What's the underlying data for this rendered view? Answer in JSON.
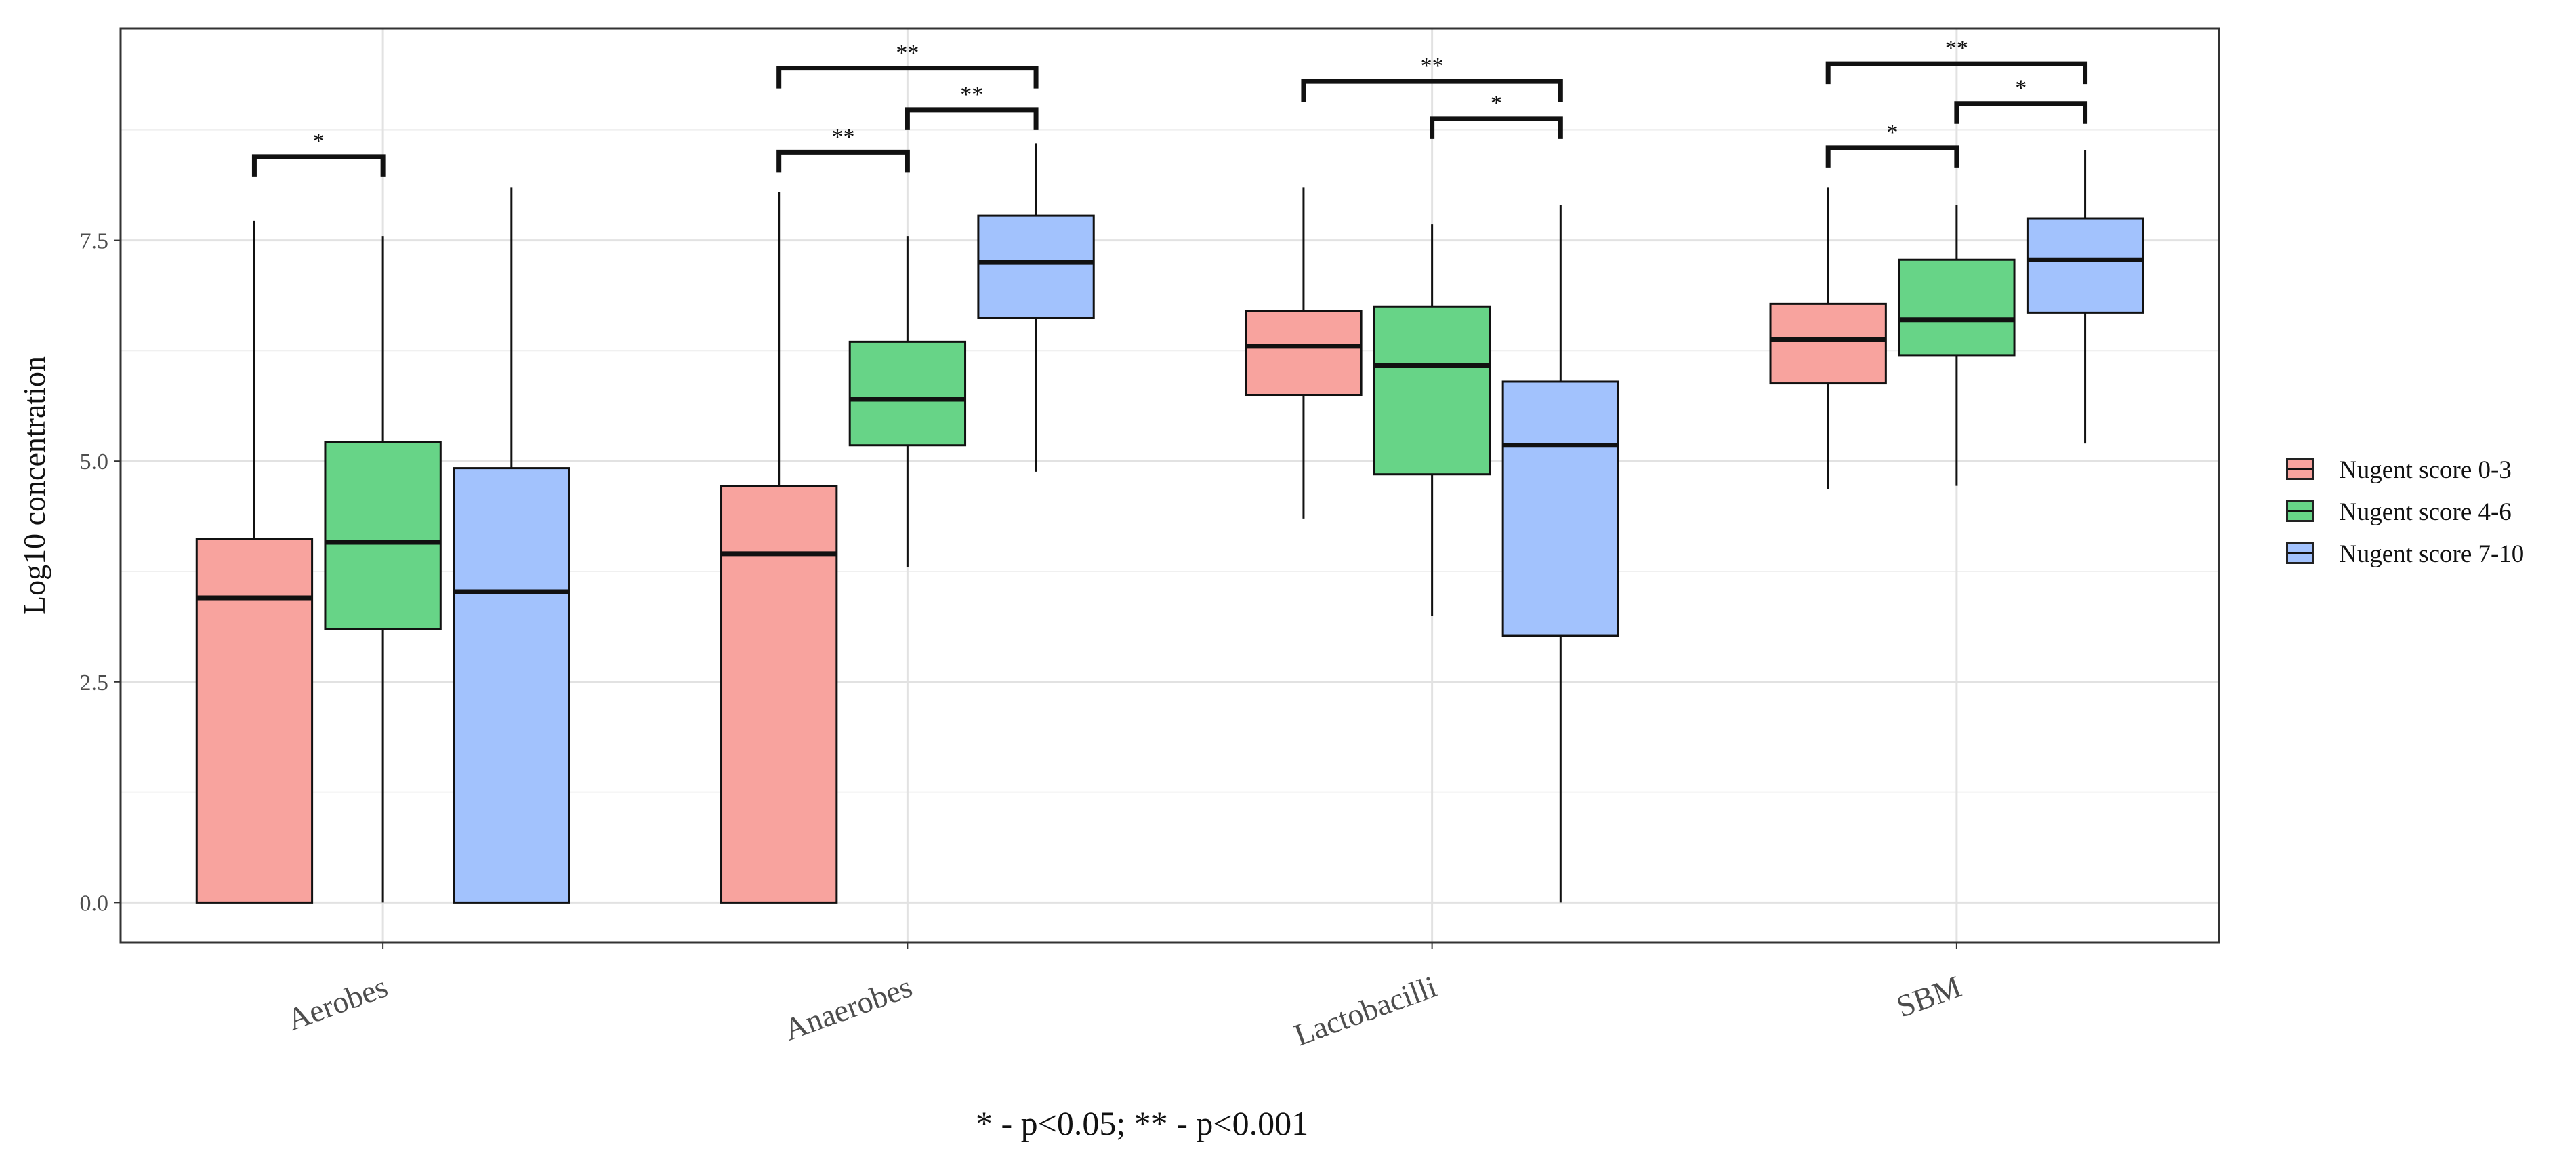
{
  "chart_data": {
    "type": "boxplot",
    "title": "",
    "xlabel": "",
    "ylabel": "Log10 concentration",
    "ylim": [
      -0.45,
      9.9
    ],
    "yticks": [
      0.0,
      2.5,
      5.0,
      7.5
    ],
    "ytick_labels": [
      "0.0",
      "2.5",
      "5.0",
      "7.5"
    ],
    "grid": true,
    "legend_position": "right",
    "categories": [
      "Aerobes",
      "Anaerobes",
      "Lactobacilli",
      "SBM"
    ],
    "series": [
      {
        "name": "Nugent score 0-3",
        "color": "#F8A39E",
        "boxes": [
          {
            "min": 0.0,
            "q1": 0.0,
            "median": 3.45,
            "q3": 4.12,
            "max": 7.72
          },
          {
            "min": 0.0,
            "q1": 0.0,
            "median": 3.95,
            "q3": 4.72,
            "max": 8.05
          },
          {
            "min": 4.35,
            "q1": 5.75,
            "median": 6.3,
            "q3": 6.7,
            "max": 8.1
          },
          {
            "min": 4.68,
            "q1": 5.88,
            "median": 6.38,
            "q3": 6.78,
            "max": 8.1
          }
        ]
      },
      {
        "name": "Nugent score 4-6",
        "color": "#67D487",
        "boxes": [
          {
            "min": 0.0,
            "q1": 3.1,
            "median": 4.08,
            "q3": 5.22,
            "max": 7.55
          },
          {
            "min": 3.8,
            "q1": 5.18,
            "median": 5.7,
            "q3": 6.35,
            "max": 7.55
          },
          {
            "min": 3.25,
            "q1": 4.85,
            "median": 6.08,
            "q3": 6.75,
            "max": 7.68
          },
          {
            "min": 4.72,
            "q1": 6.2,
            "median": 6.6,
            "q3": 7.28,
            "max": 7.9
          }
        ]
      },
      {
        "name": "Nugent score 7-10",
        "color": "#A2C2FD",
        "boxes": [
          {
            "min": 0.0,
            "q1": 0.0,
            "median": 3.52,
            "q3": 4.92,
            "max": 8.1
          },
          {
            "min": 4.88,
            "q1": 6.62,
            "median": 7.25,
            "q3": 7.78,
            "max": 8.6
          },
          {
            "min": 0.0,
            "q1": 3.02,
            "median": 5.18,
            "q3": 5.9,
            "max": 7.9
          },
          {
            "min": 5.2,
            "q1": 6.68,
            "median": 7.28,
            "q3": 7.75,
            "max": 8.52
          }
        ]
      }
    ],
    "annotations": [
      {
        "category": "Aerobes",
        "from": 0,
        "to": 1,
        "y": 8.45,
        "label": "*"
      },
      {
        "category": "Anaerobes",
        "from": 0,
        "to": 1,
        "y": 8.5,
        "label": "**"
      },
      {
        "category": "Anaerobes",
        "from": 1,
        "to": 2,
        "y": 8.98,
        "label": "**"
      },
      {
        "category": "Anaerobes",
        "from": 0,
        "to": 2,
        "y": 9.45,
        "label": "**"
      },
      {
        "category": "Lactobacilli",
        "from": 1,
        "to": 2,
        "y": 8.88,
        "label": "*"
      },
      {
        "category": "Lactobacilli",
        "from": 0,
        "to": 2,
        "y": 9.3,
        "label": "**"
      },
      {
        "category": "SBM",
        "from": 0,
        "to": 1,
        "y": 8.55,
        "label": "*"
      },
      {
        "category": "SBM",
        "from": 1,
        "to": 2,
        "y": 9.05,
        "label": "*"
      },
      {
        "category": "SBM",
        "from": 0,
        "to": 2,
        "y": 9.5,
        "label": "**"
      }
    ]
  },
  "footnote": "* - p<0.05; ** - p<0.001"
}
